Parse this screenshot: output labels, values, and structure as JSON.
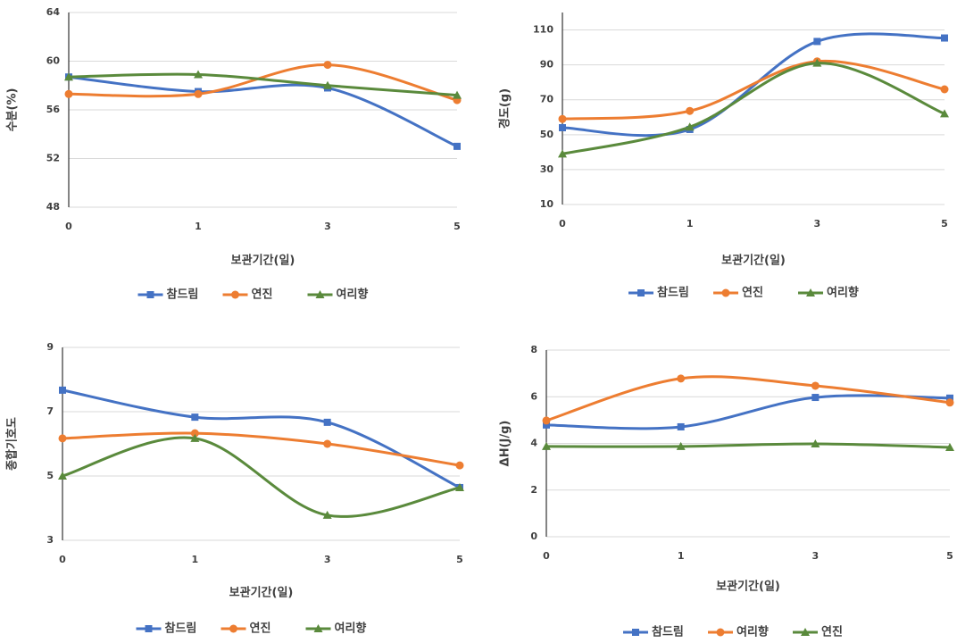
{
  "chart_data": [
    {
      "type": "line",
      "y_label": "수분(%)",
      "x_label": "보관기간(일)",
      "categories": [
        "0",
        "1",
        "3",
        "5"
      ],
      "ylim": [
        48,
        64
      ],
      "yticks": [
        48,
        52,
        56,
        60,
        64
      ],
      "grid": true,
      "series": [
        {
          "name": "참드림",
          "color": "#4472c4",
          "marker": "square",
          "values": [
            58.7,
            57.5,
            57.8,
            53.0
          ]
        },
        {
          "name": "연진",
          "color": "#ed7d31",
          "marker": "circle",
          "values": [
            57.3,
            57.3,
            59.7,
            56.8
          ]
        },
        {
          "name": "여리향",
          "color": "#5a8a3c",
          "marker": "triangle",
          "values": [
            58.7,
            58.9,
            58.0,
            57.2
          ]
        }
      ]
    },
    {
      "type": "line",
      "y_label": "경도(g)",
      "x_label": "보관기간(일)",
      "categories": [
        "0",
        "1",
        "3",
        "5"
      ],
      "ylim": [
        10,
        120
      ],
      "yticks": [
        10,
        30,
        50,
        70,
        90,
        110
      ],
      "grid": true,
      "series": [
        {
          "name": "참드림",
          "color": "#4472c4",
          "marker": "square",
          "values": [
            54,
            53,
            103.4,
            105.4
          ]
        },
        {
          "name": "연진",
          "color": "#ed7d31",
          "marker": "circle",
          "values": [
            59,
            63.6,
            92,
            76
          ]
        },
        {
          "name": "여리향",
          "color": "#5a8a3c",
          "marker": "triangle",
          "values": [
            39,
            54.4,
            91,
            62
          ]
        }
      ]
    },
    {
      "type": "line",
      "y_label": "종합기호도",
      "x_label": "보관기간(일)",
      "categories": [
        "0",
        "1",
        "3",
        "5"
      ],
      "ylim": [
        3,
        9
      ],
      "yticks": [
        3,
        5,
        7,
        9
      ],
      "grid": true,
      "series": [
        {
          "name": "참드림",
          "color": "#4472c4",
          "marker": "square",
          "values": [
            7.67,
            6.83,
            6.67,
            4.64
          ]
        },
        {
          "name": "연진",
          "color": "#ed7d31",
          "marker": "circle",
          "values": [
            6.17,
            6.33,
            6.0,
            5.33
          ]
        },
        {
          "name": "여리향",
          "color": "#5a8a3c",
          "marker": "triangle",
          "values": [
            5.0,
            6.17,
            3.78,
            4.64
          ]
        }
      ]
    },
    {
      "type": "line",
      "y_label": "ΔH(J/g)",
      "x_label": "보관기간(일)",
      "categories": [
        "0",
        "1",
        "3",
        "5"
      ],
      "ylim": [
        0,
        8
      ],
      "yticks": [
        0,
        2,
        4,
        6,
        8
      ],
      "grid": true,
      "series": [
        {
          "name": "참드림",
          "color": "#4472c4",
          "marker": "square",
          "values": [
            4.79,
            4.71,
            5.97,
            5.94
          ]
        },
        {
          "name": "여리향",
          "color": "#ed7d31",
          "marker": "circle",
          "values": [
            4.98,
            6.78,
            6.47,
            5.75
          ]
        },
        {
          "name": "연진",
          "color": "#5a8a3c",
          "marker": "triangle",
          "values": [
            3.87,
            3.87,
            3.98,
            3.83
          ]
        }
      ]
    }
  ]
}
